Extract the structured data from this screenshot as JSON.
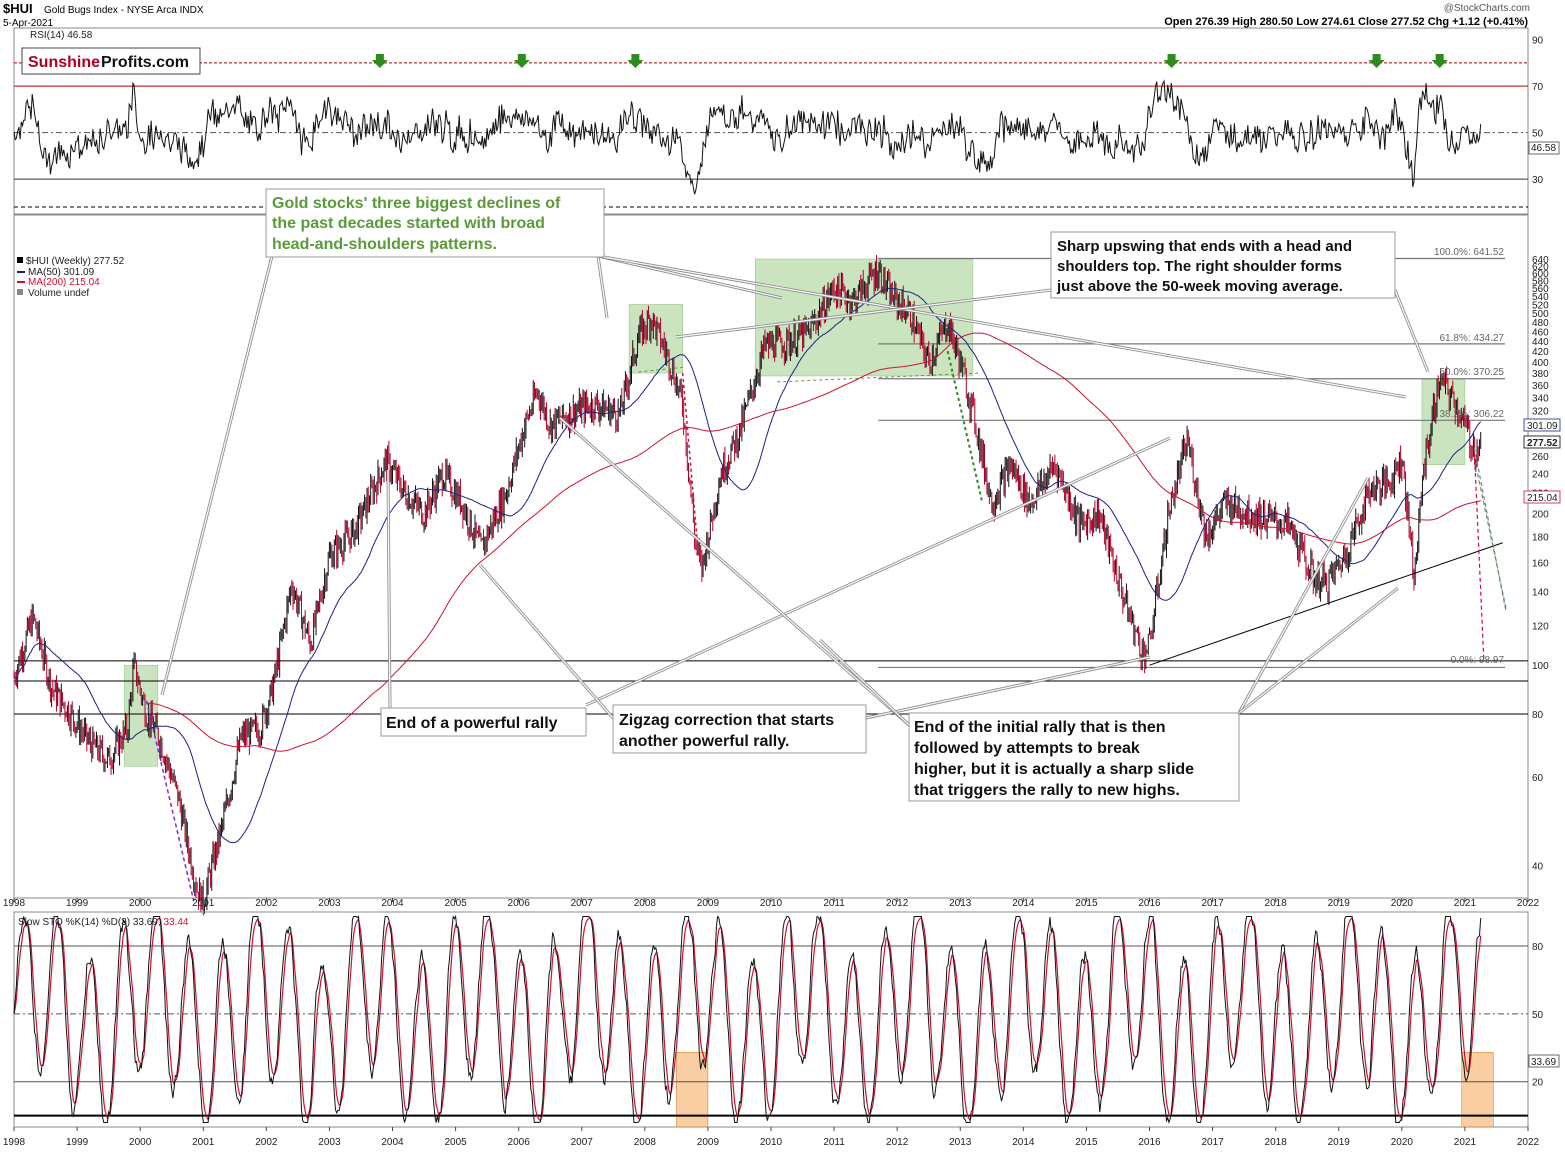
{
  "header": {
    "symbol": "$HUI",
    "name": "Gold Bugs Index - NYSE Arca INDX",
    "date": "5-Apr-2021",
    "watermark": "@StockCharts.com",
    "quote": "Open 276.39  High 280.50  Low 274.61  Close 277.52  Chg +1.12 (+0.41%)"
  },
  "logo": {
    "part1": "Sunshine",
    "part2": "Profits.com"
  },
  "rsi_panel": {
    "label": "RSI(14) 46.58",
    "value_badge": "46.58",
    "y_ticks": [
      "90",
      "70",
      "50",
      "30"
    ]
  },
  "price_panel": {
    "legend": [
      "$HUI (Weekly) 277.52",
      "MA(50) 301.09",
      "MA(200) 215.04",
      "Volume undef"
    ],
    "badges": [
      "301.09",
      "277.52",
      "215.04"
    ],
    "fib_labels": [
      "100.0%: 641.52",
      "61.8%: 434.27",
      "50.0%: 370.25",
      "38.2%: 306.22",
      "0.0%: 98.97"
    ],
    "y_ticks": [
      "640",
      "620",
      "600",
      "580",
      "560",
      "540",
      "520",
      "500",
      "480",
      "460",
      "440",
      "420",
      "400",
      "380",
      "360",
      "340",
      "320",
      "300",
      "280",
      "260",
      "240",
      "220",
      "200",
      "180",
      "160",
      "140",
      "120",
      "100",
      "80",
      "60",
      "40"
    ]
  },
  "stoch_panel": {
    "label": "Slow STO %K(14) %D(3) 33.69,",
    "label_d": "33.44",
    "value_badge": "33.69",
    "y_ticks": [
      "80",
      "50",
      "20"
    ]
  },
  "x_axis": [
    "1998",
    "1999",
    "2000",
    "2001",
    "2002",
    "2003",
    "2004",
    "2005",
    "2006",
    "2007",
    "2008",
    "2009",
    "2010",
    "2011",
    "2012",
    "2013",
    "2014",
    "2015",
    "2016",
    "2017",
    "2018",
    "2019",
    "2020",
    "2021",
    "2022"
  ],
  "annotations": {
    "hs": "Gold stocks' three biggest declines of the past decades started with broad head-and-shoulders patterns.",
    "sharp": "Sharp upswing that ends with a head and shoulders top. The right shoulder forms just above the 50-week moving average.",
    "rally": "End of a powerful rally",
    "zigzag": "Zigzag correction that starts another powerful rally.",
    "initial": "End of the initial rally that is then followed by attempts to break higher, but it is actually a sharp slide that triggers the rally to new highs."
  },
  "colors": {
    "price_candle": "#000000",
    "price_down": "#b0002a",
    "ma50": "#1a237e",
    "ma200": "#d01030",
    "green_box": "#b5d8a5",
    "orange_box": "#f5b97a",
    "annotation_green": "#5a9a3a",
    "arrow_green": "#2e8b1e"
  },
  "chart_data": [
    {
      "type": "line",
      "title": "$HUI Gold Bugs Index - NYSE Arca INDX",
      "series": [
        {
          "name": "$HUI (Weekly)",
          "x": [
            "1998",
            "1998.5",
            "1999",
            "1999.5",
            "2000",
            "2000.5",
            "2001",
            "2001.5",
            "2002",
            "2002.5",
            "2003",
            "2003.5",
            "2004",
            "2004.5",
            "2005",
            "2005.5",
            "2006",
            "2006.5",
            "2007",
            "2007.5",
            "2008",
            "2008.5",
            "2008.9",
            "2009.5",
            "2010",
            "2010.5",
            "2011",
            "2011.7",
            "2012",
            "2012.5",
            "2013",
            "2013.5",
            "2014",
            "2014.5",
            "2015",
            "2015.5",
            "2016",
            "2016.5",
            "2017",
            "2017.5",
            "2018",
            "2018.5",
            "2019",
            "2019.5",
            "2020",
            "2020.2",
            "2020.6",
            "2021",
            "2021.3"
          ],
          "values": [
            90,
            110,
            75,
            72,
            85,
            60,
            40,
            70,
            90,
            140,
            180,
            205,
            255,
            210,
            200,
            240,
            300,
            320,
            330,
            340,
            460,
            380,
            160,
            300,
            380,
            460,
            510,
            540,
            520,
            420,
            420,
            260,
            230,
            220,
            200,
            150,
            110,
            270,
            220,
            210,
            200,
            180,
            140,
            170,
            240,
            150,
            370,
            310,
            277.52
          ]
        },
        {
          "name": "MA(50)",
          "values": [
            140,
            110,
            95,
            80,
            75,
            70,
            55,
            75,
            100,
            130,
            170,
            200,
            230,
            210,
            215,
            240,
            280,
            310,
            330,
            350,
            420,
            400,
            300,
            320,
            400,
            470,
            500,
            510,
            490,
            440,
            380,
            280,
            240,
            230,
            200,
            150,
            130,
            200,
            215,
            220,
            210,
            180,
            165,
            175,
            230,
            250,
            300,
            310,
            301.09
          ]
        },
        {
          "name": "MA(200)",
          "values": [
            0,
            0,
            0,
            0,
            110,
            100,
            90,
            80,
            80,
            90,
            110,
            135,
            160,
            180,
            200,
            230,
            260,
            290,
            310,
            330,
            360,
            390,
            410,
            420,
            440,
            460,
            480,
            490,
            480,
            460,
            420,
            380,
            340,
            300,
            260,
            230,
            210,
            200,
            200,
            195,
            190,
            185,
            180,
            180,
            190,
            200,
            210,
            215,
            215.04
          ]
        }
      ],
      "ylabel": "",
      "y_scale": "log",
      "ylim": [
        32,
        660
      ]
    },
    {
      "type": "line",
      "title": "RSI(14) 46.58",
      "ylim": [
        15,
        95
      ],
      "reference_lines": [
        80,
        70,
        50,
        30,
        18
      ],
      "values_last": 46.58
    },
    {
      "type": "line",
      "title": "Slow STO %K(14) %D(3) 33.69, 33.44",
      "ylim": [
        0,
        95
      ],
      "reference_lines": [
        80,
        50,
        20,
        5
      ],
      "values_last": [
        33.69,
        33.44
      ]
    }
  ]
}
